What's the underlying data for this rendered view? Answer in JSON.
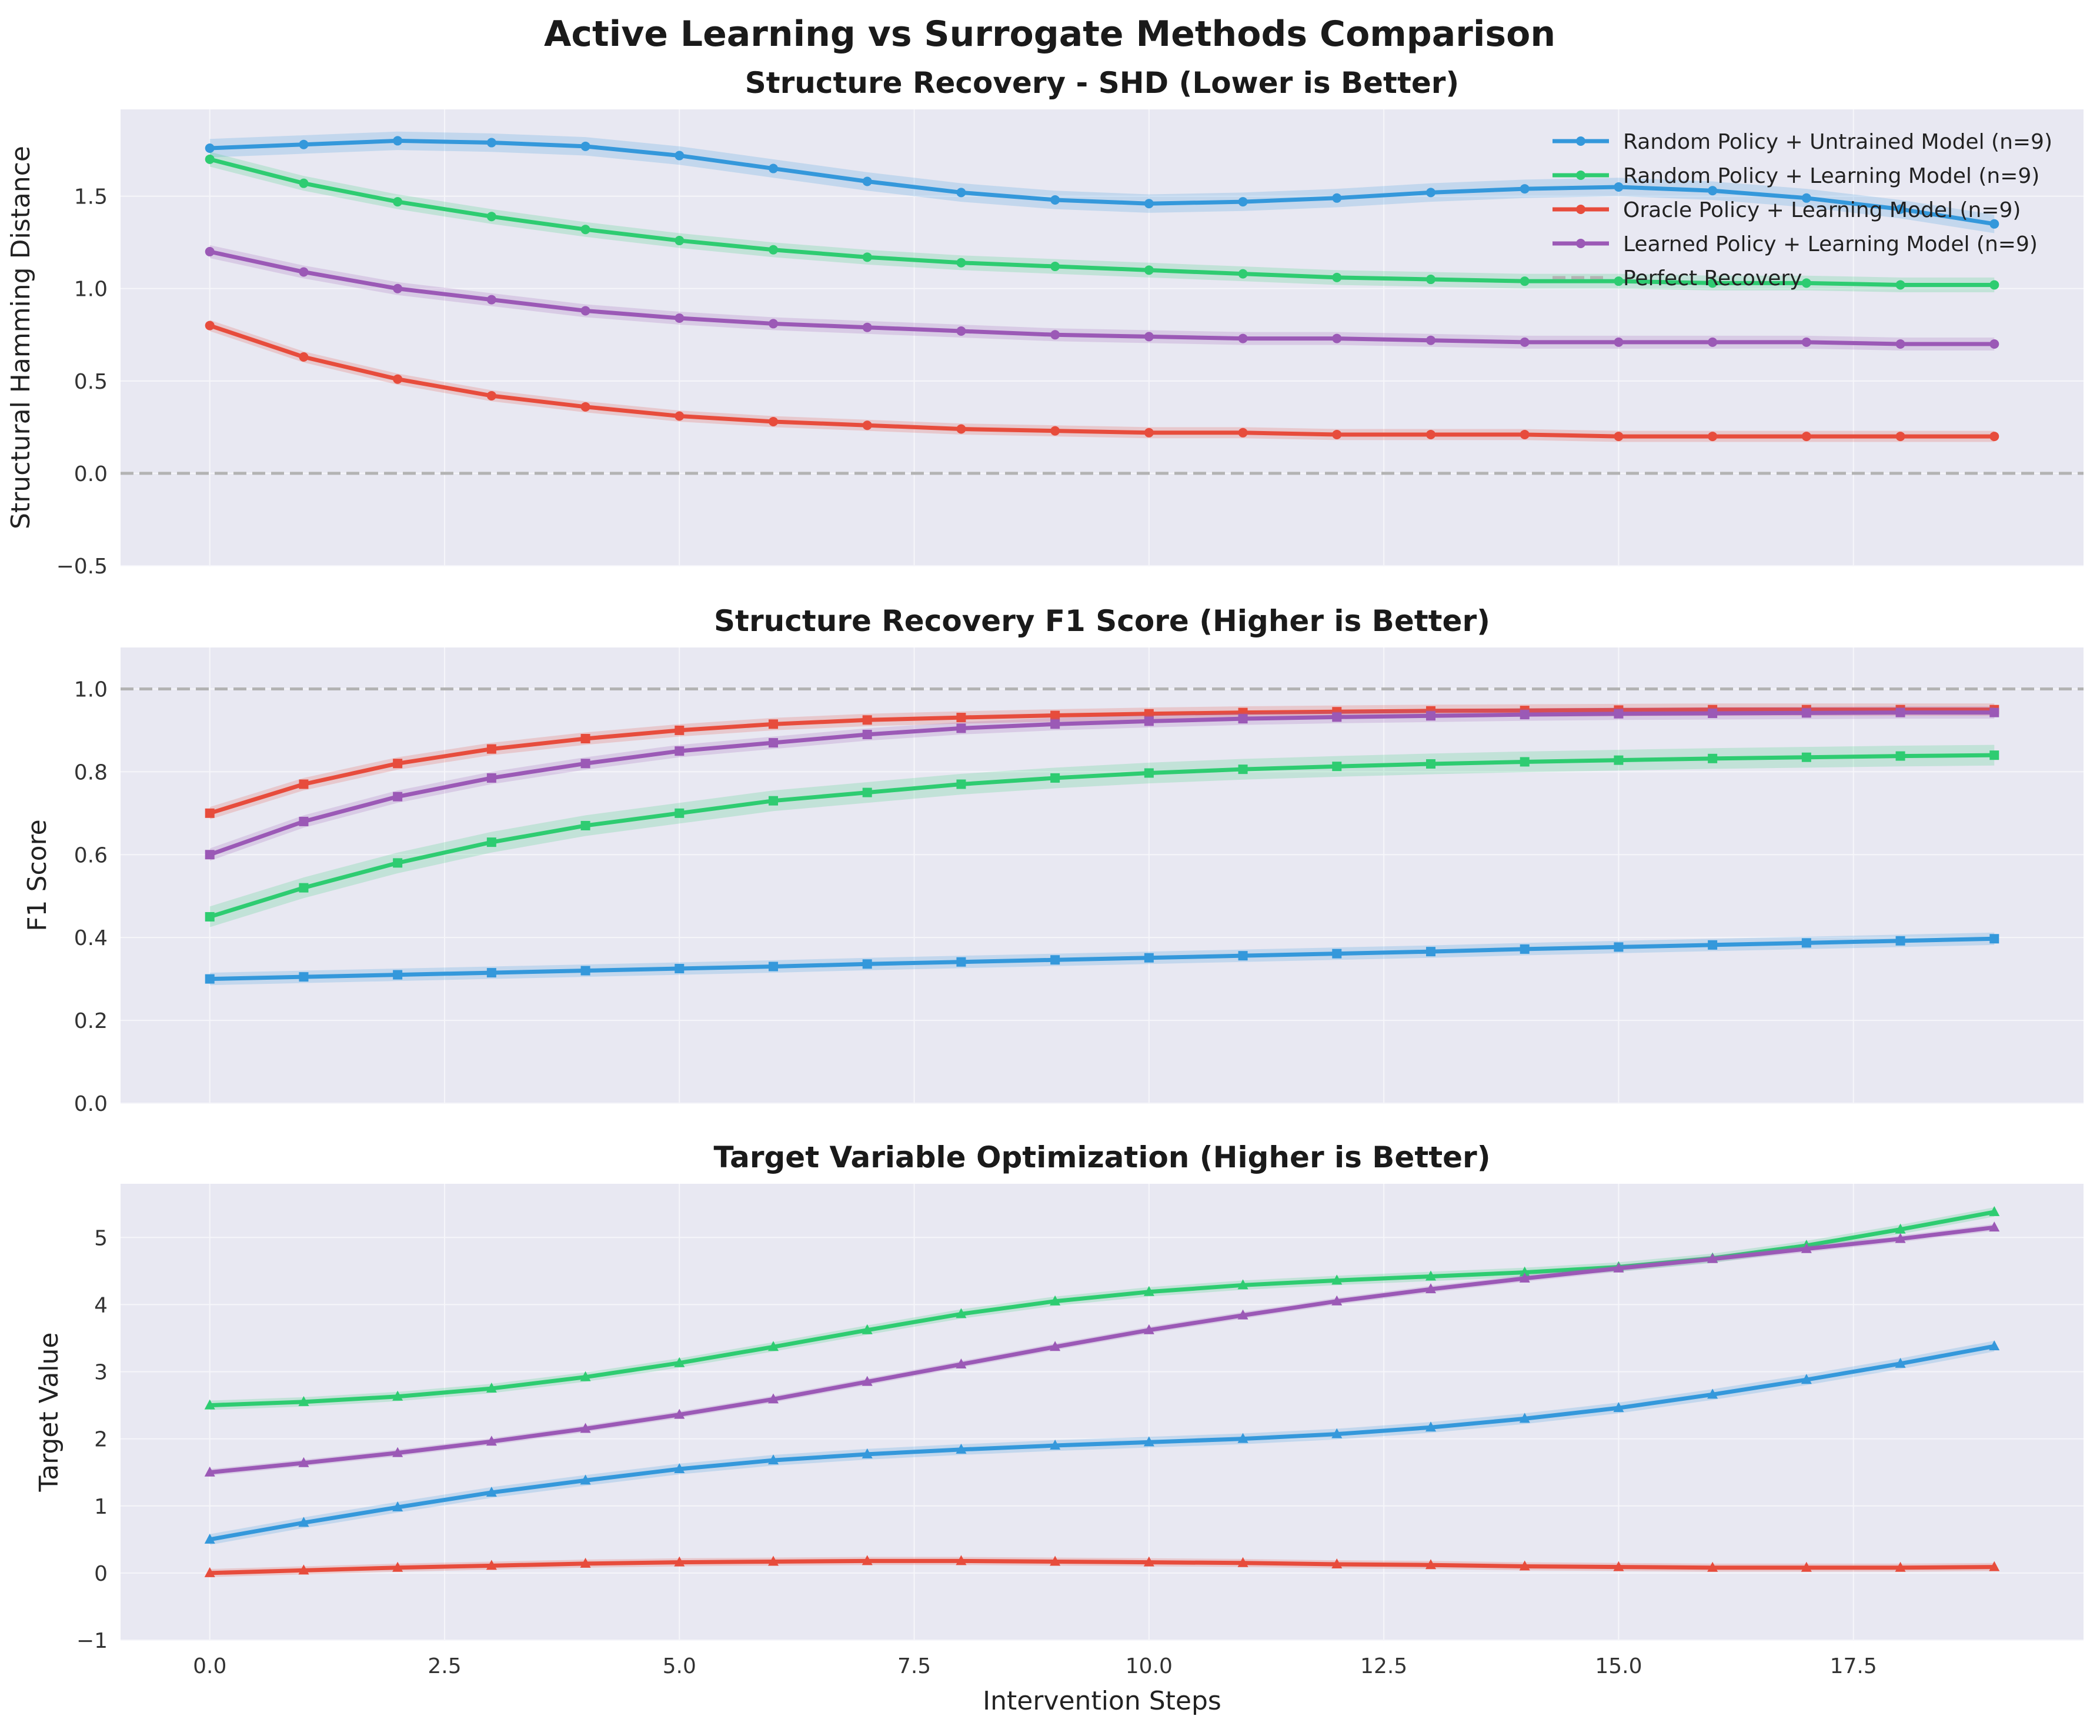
{
  "figure": {
    "title": "Active Learning vs Surrogate Methods Comparison",
    "xlabel": "Intervention Steps"
  },
  "colors": {
    "panel_bg": "#e8e8f2",
    "grid": "#f6f6fa",
    "reference_line": "#b3b3b3"
  },
  "legend": {
    "location": "top-right of first panel",
    "reference_label": "Perfect Recovery"
  },
  "chart_data": [
    {
      "type": "line",
      "title": "Structure Recovery - SHD (Lower is Better)",
      "xlabel": "",
      "ylabel": "Structural Hamming Distance",
      "xlim": [
        -0.95,
        19.95
      ],
      "ylim": [
        -0.5,
        1.97
      ],
      "x_ticks": [
        0.0,
        2.5,
        5.0,
        7.5,
        10.0,
        12.5,
        15.0,
        17.5
      ],
      "x_tick_labels_visible": false,
      "y_ticks": [
        -0.5,
        0.0,
        0.5,
        1.0,
        1.5
      ],
      "y_tick_labels": [
        "−0.5",
        "0.0",
        "0.5",
        "1.0",
        "1.5"
      ],
      "reference_line": 0.0,
      "marker": "circle",
      "grid": true,
      "legend": true,
      "x": [
        0,
        1,
        2,
        3,
        4,
        5,
        6,
        7,
        8,
        9,
        10,
        11,
        12,
        13,
        14,
        15,
        16,
        17,
        18,
        19
      ],
      "series": [
        {
          "name": "Random Policy + Untrained Model (n=9)",
          "color": "#3498db",
          "band": 0.05,
          "values": [
            1.76,
            1.78,
            1.8,
            1.79,
            1.77,
            1.72,
            1.65,
            1.58,
            1.52,
            1.48,
            1.46,
            1.47,
            1.49,
            1.52,
            1.54,
            1.55,
            1.53,
            1.49,
            1.43,
            1.35
          ]
        },
        {
          "name": "Random Policy + Learning Model (n=9)",
          "color": "#2ecc71",
          "band": 0.04,
          "values": [
            1.7,
            1.57,
            1.47,
            1.39,
            1.32,
            1.26,
            1.21,
            1.17,
            1.14,
            1.12,
            1.1,
            1.08,
            1.06,
            1.05,
            1.04,
            1.04,
            1.03,
            1.03,
            1.02,
            1.02
          ]
        },
        {
          "name": "Oracle Policy + Learning Model (n=9)",
          "color": "#e74c3c",
          "band": 0.03,
          "values": [
            0.8,
            0.63,
            0.51,
            0.42,
            0.36,
            0.31,
            0.28,
            0.26,
            0.24,
            0.23,
            0.22,
            0.22,
            0.21,
            0.21,
            0.21,
            0.2,
            0.2,
            0.2,
            0.2,
            0.2
          ]
        },
        {
          "name": "Learned Policy + Learning Model (n=9)",
          "color": "#9b59b6",
          "band": 0.035,
          "values": [
            1.2,
            1.09,
            1.0,
            0.94,
            0.88,
            0.84,
            0.81,
            0.79,
            0.77,
            0.75,
            0.74,
            0.73,
            0.73,
            0.72,
            0.71,
            0.71,
            0.71,
            0.71,
            0.7,
            0.7
          ]
        }
      ]
    },
    {
      "type": "line",
      "title": "Structure Recovery F1 Score (Higher is Better)",
      "xlabel": "",
      "ylabel": "F1 Score",
      "xlim": [
        -0.95,
        19.95
      ],
      "ylim": [
        0.0,
        1.1
      ],
      "x_ticks": [
        0.0,
        2.5,
        5.0,
        7.5,
        10.0,
        12.5,
        15.0,
        17.5
      ],
      "x_tick_labels_visible": false,
      "y_ticks": [
        0.0,
        0.2,
        0.4,
        0.6,
        0.8,
        1.0
      ],
      "y_tick_labels": [
        "0.0",
        "0.2",
        "0.4",
        "0.6",
        "0.8",
        "1.0"
      ],
      "reference_line": 1.0,
      "marker": "square",
      "grid": true,
      "legend": false,
      "x": [
        0,
        1,
        2,
        3,
        4,
        5,
        6,
        7,
        8,
        9,
        10,
        11,
        12,
        13,
        14,
        15,
        16,
        17,
        18,
        19
      ],
      "series": [
        {
          "color": "#3498db",
          "band": 0.015,
          "values": [
            0.3,
            0.305,
            0.31,
            0.315,
            0.32,
            0.325,
            0.33,
            0.336,
            0.341,
            0.346,
            0.351,
            0.356,
            0.361,
            0.366,
            0.372,
            0.377,
            0.382,
            0.387,
            0.392,
            0.397
          ]
        },
        {
          "color": "#2ecc71",
          "band": 0.025,
          "values": [
            0.45,
            0.52,
            0.58,
            0.63,
            0.67,
            0.7,
            0.73,
            0.75,
            0.77,
            0.785,
            0.797,
            0.806,
            0.813,
            0.819,
            0.824,
            0.828,
            0.832,
            0.835,
            0.838,
            0.84
          ]
        },
        {
          "color": "#e74c3c",
          "band": 0.015,
          "values": [
            0.7,
            0.77,
            0.82,
            0.855,
            0.88,
            0.9,
            0.915,
            0.925,
            0.931,
            0.936,
            0.94,
            0.943,
            0.945,
            0.947,
            0.948,
            0.949,
            0.95,
            0.95,
            0.95,
            0.95
          ]
        },
        {
          "color": "#9b59b6",
          "band": 0.015,
          "values": [
            0.6,
            0.68,
            0.74,
            0.785,
            0.82,
            0.85,
            0.87,
            0.89,
            0.905,
            0.915,
            0.922,
            0.928,
            0.932,
            0.935,
            0.938,
            0.94,
            0.941,
            0.942,
            0.943,
            0.943
          ]
        }
      ]
    },
    {
      "type": "line",
      "title": "Target Variable Optimization (Higher is Better)",
      "xlabel": "Intervention Steps",
      "ylabel": "Target Value",
      "xlim": [
        -0.95,
        19.95
      ],
      "ylim": [
        -1.0,
        5.8
      ],
      "x_ticks": [
        0.0,
        2.5,
        5.0,
        7.5,
        10.0,
        12.5,
        15.0,
        17.5
      ],
      "x_tick_labels": [
        "0.0",
        "2.5",
        "5.0",
        "7.5",
        "10.0",
        "12.5",
        "15.0",
        "17.5"
      ],
      "x_tick_labels_visible": true,
      "y_ticks": [
        -1,
        0,
        1,
        2,
        3,
        4,
        5
      ],
      "y_tick_labels": [
        "−1",
        "0",
        "1",
        "2",
        "3",
        "4",
        "5"
      ],
      "reference_line": null,
      "marker": "triangle",
      "grid": true,
      "legend": false,
      "x": [
        0,
        1,
        2,
        3,
        4,
        5,
        6,
        7,
        8,
        9,
        10,
        11,
        12,
        13,
        14,
        15,
        16,
        17,
        18,
        19
      ],
      "series": [
        {
          "color": "#3498db",
          "band": 0.08,
          "values": [
            0.5,
            0.75,
            0.98,
            1.2,
            1.38,
            1.55,
            1.68,
            1.77,
            1.84,
            1.9,
            1.95,
            2.0,
            2.07,
            2.17,
            2.3,
            2.46,
            2.66,
            2.88,
            3.12,
            3.38
          ]
        },
        {
          "color": "#2ecc71",
          "band": 0.07,
          "values": [
            2.5,
            2.55,
            2.63,
            2.75,
            2.92,
            3.13,
            3.37,
            3.62,
            3.86,
            4.05,
            4.19,
            4.29,
            4.36,
            4.42,
            4.48,
            4.56,
            4.69,
            4.88,
            5.12,
            5.38
          ]
        },
        {
          "color": "#e74c3c",
          "band": 0.06,
          "values": [
            0.0,
            0.04,
            0.08,
            0.11,
            0.14,
            0.16,
            0.17,
            0.18,
            0.18,
            0.17,
            0.16,
            0.15,
            0.13,
            0.12,
            0.1,
            0.09,
            0.08,
            0.08,
            0.08,
            0.09
          ]
        },
        {
          "color": "#9b59b6",
          "band": 0.05,
          "values": [
            1.5,
            1.64,
            1.79,
            1.96,
            2.15,
            2.36,
            2.59,
            2.85,
            3.11,
            3.37,
            3.62,
            3.84,
            4.05,
            4.23,
            4.39,
            4.54,
            4.68,
            4.83,
            4.98,
            5.15
          ]
        }
      ]
    }
  ]
}
